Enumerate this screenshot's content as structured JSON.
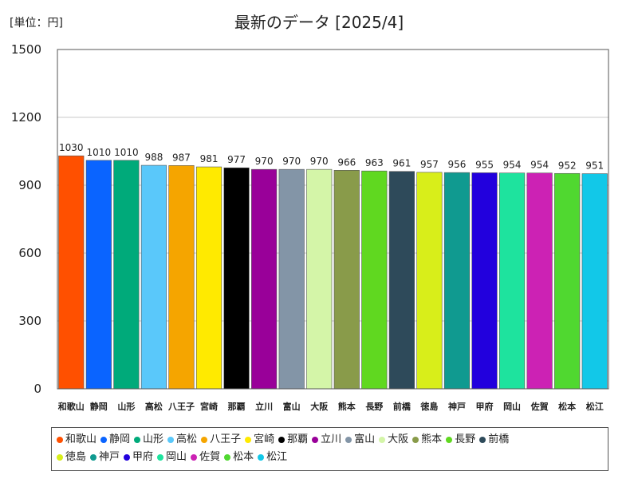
{
  "unit_label": "[単位：円]",
  "chart_data": {
    "type": "bar",
    "title": "最新のデータ [2025/4]",
    "xlabel": "",
    "ylabel": "",
    "ylim": [
      0,
      1500
    ],
    "yticks": [
      0,
      300,
      600,
      900,
      1200,
      1500
    ],
    "grid": true,
    "categories": [
      "和歌山",
      "静岡",
      "山形",
      "高松",
      "八王子",
      "宮崎",
      "那覇",
      "立川",
      "富山",
      "大阪",
      "熊本",
      "長野",
      "前橋",
      "徳島",
      "神戸",
      "甲府",
      "岡山",
      "佐賀",
      "松本",
      "松江"
    ],
    "values": [
      1030,
      1010,
      1010,
      988,
      987,
      981,
      977,
      970,
      970,
      970,
      966,
      963,
      961,
      957,
      956,
      955,
      954,
      954,
      952,
      951
    ],
    "colors": [
      "#ff5000",
      "#0a64ff",
      "#00aa7a",
      "#5ac8fa",
      "#f5a500",
      "#ffea00",
      "#000000",
      "#990099",
      "#8395a7",
      "#d4f5a8",
      "#899b4a",
      "#60d820",
      "#2e4a5a",
      "#d8ee1a",
      "#109a90",
      "#2200dd",
      "#1ee39e",
      "#cc22b4",
      "#50d830",
      "#12c8e8"
    ],
    "legend_position": "bottom"
  }
}
